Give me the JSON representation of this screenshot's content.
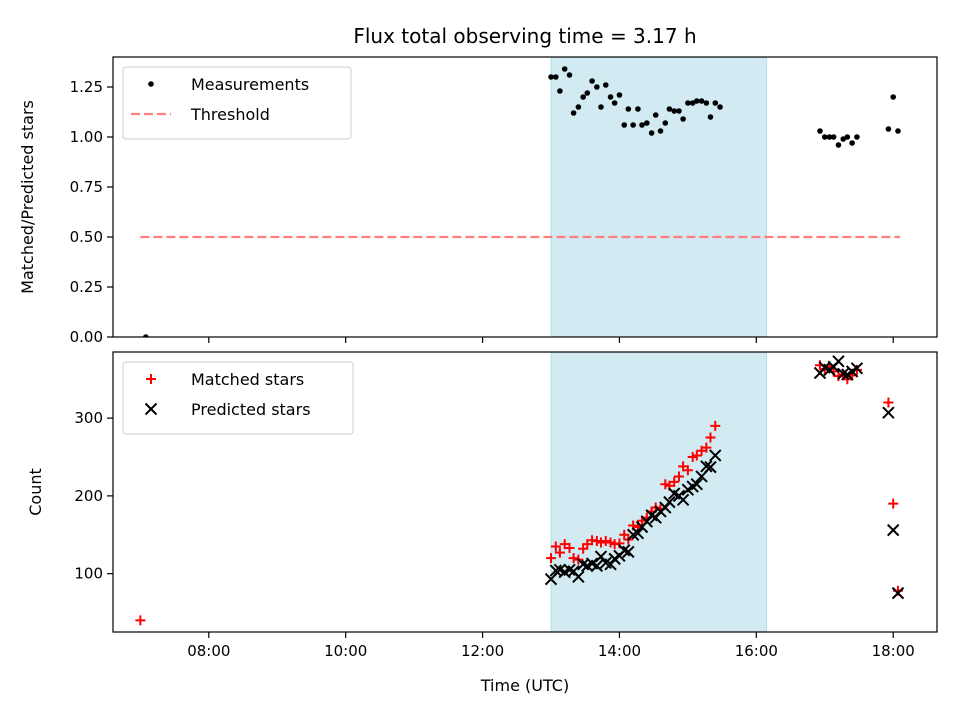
{
  "chart_data": {
    "title": "Flux total observing time = 3.17 h",
    "xlabel": "Time (UTC)",
    "x_ticks": [
      {
        "hour": 8,
        "label": "08:00"
      },
      {
        "hour": 10,
        "label": "10:00"
      },
      {
        "hour": 12,
        "label": "12:00"
      },
      {
        "hour": 14,
        "label": "14:00"
      },
      {
        "hour": 16,
        "label": "16:00"
      },
      {
        "hour": 18,
        "label": "18:00"
      }
    ],
    "xlim": [
      6.6,
      18.64
    ],
    "shaded_span": {
      "start": 13.0,
      "end": 16.15,
      "color": "#add8e6"
    },
    "panels": [
      {
        "type": "scatter",
        "ylabel": "Matched/Predicted stars",
        "ylim": [
          0,
          1.4
        ],
        "y_ticks": [
          {
            "value": 0.0,
            "label": "0.00"
          },
          {
            "value": 0.25,
            "label": "0.25"
          },
          {
            "value": 0.5,
            "label": "0.50"
          },
          {
            "value": 0.75,
            "label": "0.75"
          },
          {
            "value": 1.0,
            "label": "1.00"
          },
          {
            "value": 1.25,
            "label": "1.25"
          }
        ],
        "legend_position": "upper-left",
        "series": [
          {
            "name": "Measurements",
            "marker": "dot",
            "color": "#000000",
            "points": [
              [
                7.08,
                0.0
              ],
              [
                13.0,
                1.3
              ],
              [
                13.07,
                1.3
              ],
              [
                13.13,
                1.23
              ],
              [
                13.2,
                1.34
              ],
              [
                13.27,
                1.31
              ],
              [
                13.33,
                1.12
              ],
              [
                13.4,
                1.15
              ],
              [
                13.47,
                1.2
              ],
              [
                13.53,
                1.22
              ],
              [
                13.6,
                1.28
              ],
              [
                13.67,
                1.25
              ],
              [
                13.73,
                1.15
              ],
              [
                13.8,
                1.26
              ],
              [
                13.87,
                1.2
              ],
              [
                13.93,
                1.17
              ],
              [
                14.0,
                1.21
              ],
              [
                14.07,
                1.06
              ],
              [
                14.13,
                1.14
              ],
              [
                14.2,
                1.06
              ],
              [
                14.27,
                1.14
              ],
              [
                14.33,
                1.06
              ],
              [
                14.4,
                1.07
              ],
              [
                14.47,
                1.02
              ],
              [
                14.53,
                1.11
              ],
              [
                14.6,
                1.03
              ],
              [
                14.67,
                1.07
              ],
              [
                14.73,
                1.14
              ],
              [
                14.8,
                1.13
              ],
              [
                14.87,
                1.13
              ],
              [
                14.93,
                1.09
              ],
              [
                15.0,
                1.17
              ],
              [
                15.07,
                1.17
              ],
              [
                15.13,
                1.18
              ],
              [
                15.2,
                1.18
              ],
              [
                15.27,
                1.17
              ],
              [
                15.33,
                1.1
              ],
              [
                15.4,
                1.17
              ],
              [
                15.47,
                1.15
              ],
              [
                16.93,
                1.03
              ],
              [
                17.0,
                1.0
              ],
              [
                17.07,
                1.0
              ],
              [
                17.13,
                1.0
              ],
              [
                17.2,
                0.96
              ],
              [
                17.27,
                0.99
              ],
              [
                17.33,
                1.0
              ],
              [
                17.4,
                0.97
              ],
              [
                17.47,
                1.0
              ],
              [
                17.93,
                1.04
              ],
              [
                18.0,
                1.2
              ],
              [
                18.07,
                1.03
              ]
            ]
          },
          {
            "name": "Threshold",
            "line": "dashed",
            "color": "#ff7f7f",
            "points": [
              [
                7.0,
                0.5
              ],
              [
                18.1,
                0.5
              ]
            ]
          }
        ]
      },
      {
        "type": "scatter",
        "ylabel": "Count",
        "ylim": [
          25,
          385
        ],
        "y_ticks": [
          {
            "value": 100,
            "label": "100"
          },
          {
            "value": 200,
            "label": "200"
          },
          {
            "value": 300,
            "label": "300"
          }
        ],
        "legend_position": "upper-left",
        "series": [
          {
            "name": "Matched stars",
            "marker": "plus",
            "color": "#ff0000",
            "points": [
              [
                7.0,
                40
              ],
              [
                13.0,
                120
              ],
              [
                13.07,
                135
              ],
              [
                13.13,
                127
              ],
              [
                13.2,
                138
              ],
              [
                13.27,
                133
              ],
              [
                13.33,
                120
              ],
              [
                13.4,
                118
              ],
              [
                13.47,
                132
              ],
              [
                13.53,
                138
              ],
              [
                13.6,
                143
              ],
              [
                13.67,
                142
              ],
              [
                13.73,
                140
              ],
              [
                13.8,
                142
              ],
              [
                13.87,
                140
              ],
              [
                13.93,
                138
              ],
              [
                14.0,
                139
              ],
              [
                14.07,
                150
              ],
              [
                14.13,
                144
              ],
              [
                14.2,
                162
              ],
              [
                14.27,
                160
              ],
              [
                14.33,
                168
              ],
              [
                14.4,
                172
              ],
              [
                14.47,
                180
              ],
              [
                14.53,
                185
              ],
              [
                14.6,
                183
              ],
              [
                14.67,
                215
              ],
              [
                14.73,
                213
              ],
              [
                14.8,
                218
              ],
              [
                14.87,
                225
              ],
              [
                14.93,
                238
              ],
              [
                15.0,
                233
              ],
              [
                15.07,
                250
              ],
              [
                15.13,
                252
              ],
              [
                15.2,
                258
              ],
              [
                15.27,
                262
              ],
              [
                15.33,
                275
              ],
              [
                15.4,
                290
              ],
              [
                16.93,
                368
              ],
              [
                17.0,
                363
              ],
              [
                17.07,
                366
              ],
              [
                17.13,
                360
              ],
              [
                17.2,
                354
              ],
              [
                17.27,
                356
              ],
              [
                17.33,
                350
              ],
              [
                17.4,
                355
              ],
              [
                17.47,
                362
              ],
              [
                17.93,
                320
              ],
              [
                18.0,
                190
              ],
              [
                18.07,
                78
              ]
            ]
          },
          {
            "name": "Predicted stars",
            "marker": "x",
            "color": "#000000",
            "points": [
              [
                13.0,
                93
              ],
              [
                13.07,
                104
              ],
              [
                13.13,
                105
              ],
              [
                13.2,
                102
              ],
              [
                13.27,
                105
              ],
              [
                13.33,
                103
              ],
              [
                13.4,
                96
              ],
              [
                13.47,
                112
              ],
              [
                13.53,
                110
              ],
              [
                13.6,
                113
              ],
              [
                13.67,
                110
              ],
              [
                13.73,
                122
              ],
              [
                13.8,
                114
              ],
              [
                13.87,
                112
              ],
              [
                13.93,
                119
              ],
              [
                14.0,
                123
              ],
              [
                14.07,
                130
              ],
              [
                14.13,
                128
              ],
              [
                14.2,
                150
              ],
              [
                14.27,
                152
              ],
              [
                14.33,
                160
              ],
              [
                14.4,
                167
              ],
              [
                14.47,
                175
              ],
              [
                14.53,
                172
              ],
              [
                14.6,
                180
              ],
              [
                14.67,
                185
              ],
              [
                14.73,
                192
              ],
              [
                14.8,
                203
              ],
              [
                14.87,
                200
              ],
              [
                14.93,
                195
              ],
              [
                15.0,
                208
              ],
              [
                15.07,
                212
              ],
              [
                15.13,
                215
              ],
              [
                15.2,
                225
              ],
              [
                15.27,
                238
              ],
              [
                15.33,
                237
              ],
              [
                15.4,
                252
              ],
              [
                16.93,
                358
              ],
              [
                17.0,
                365
              ],
              [
                17.07,
                362
              ],
              [
                17.13,
                366
              ],
              [
                17.2,
                373
              ],
              [
                17.27,
                357
              ],
              [
                17.33,
                356
              ],
              [
                17.4,
                360
              ],
              [
                17.47,
                364
              ],
              [
                17.93,
                307
              ],
              [
                18.0,
                156
              ],
              [
                18.07,
                75
              ]
            ]
          }
        ]
      }
    ]
  }
}
